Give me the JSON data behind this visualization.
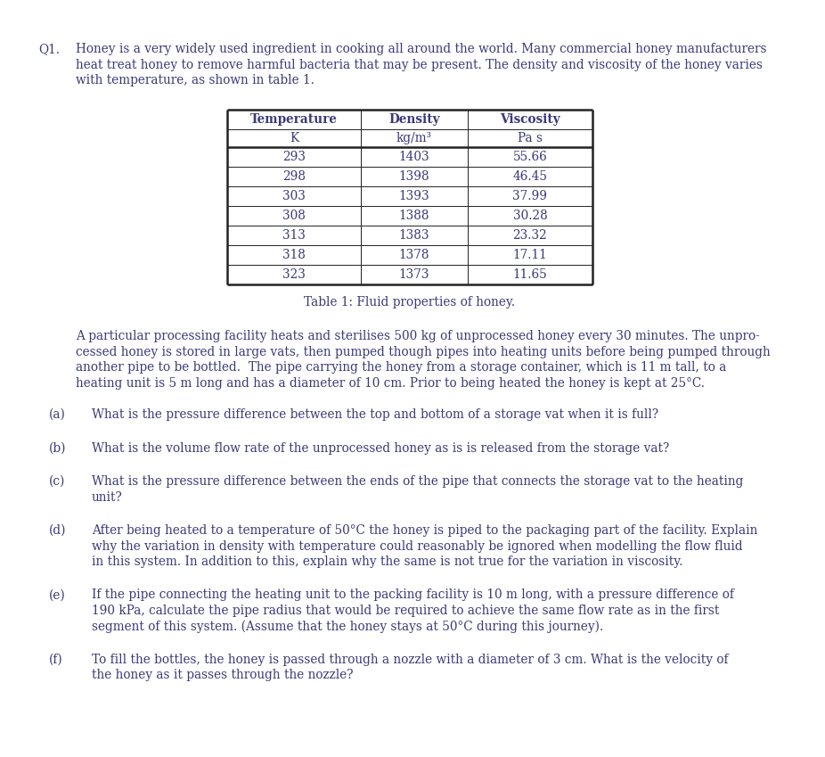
{
  "bg_color": "#ffffff",
  "text_color": "#3a3a7a",
  "border_color": "#222222",
  "font_size_body": 9.8,
  "font_size_table": 9.8,
  "q1_label": "Q1.",
  "intro_text_lines": [
    "Honey is a very widely used ingredient in cooking all around the world. Many commercial honey manufacturers",
    "heat treat honey to remove harmful bacteria that may be present. The density and viscosity of the honey varies",
    "with temperature, as shown in table 1."
  ],
  "table_caption": "Table 1: Fluid properties of honey.",
  "table_headers": [
    "Temperature",
    "Density",
    "Viscosity"
  ],
  "table_subheaders": [
    "K",
    "kg/m³",
    "Pa s"
  ],
  "table_data": [
    [
      "293",
      "1403",
      "55.66"
    ],
    [
      "298",
      "1398",
      "46.45"
    ],
    [
      "303",
      "1393",
      "37.99"
    ],
    [
      "308",
      "1388",
      "30.28"
    ],
    [
      "313",
      "1383",
      "23.32"
    ],
    [
      "318",
      "1378",
      "17.11"
    ],
    [
      "323",
      "1373",
      "11.65"
    ]
  ],
  "paragraph2_lines": [
    "A particular processing facility heats and sterilises 500 kg of unprocessed honey every 30 minutes. The unpro-",
    "cessed honey is stored in large vats, then pumped though pipes into heating units before being pumped through",
    "another pipe to be bottled.  The pipe carrying the honey from a storage container, which is 11 m tall, to a",
    "heating unit is 5 m long and has a diameter of 10 cm. Prior to being heated the honey is kept at 25°C."
  ],
  "questions": [
    {
      "label": "(a)",
      "text_lines": [
        "What is the pressure difference between the top and bottom of a storage vat when it is full?"
      ]
    },
    {
      "label": "(b)",
      "text_lines": [
        "What is the volume flow rate of the unprocessed honey as is is released from the storage vat?"
      ]
    },
    {
      "label": "(c)",
      "text_lines": [
        "What is the pressure difference between the ends of the pipe that connects the storage vat to the heating",
        "unit?"
      ]
    },
    {
      "label": "(d)",
      "text_lines": [
        "After being heated to a temperature of 50°C the honey is piped to the packaging part of the facility. Explain",
        "why the variation in density with temperature could reasonably be ignored when modelling the flow fluid",
        "in this system. In addition to this, explain why the same is not true for the variation in viscosity."
      ]
    },
    {
      "label": "(e)",
      "text_lines": [
        "If the pipe connecting the heating unit to the packing facility is 10 m long, with a pressure difference of",
        "190 kPa, calculate the pipe radius that would be required to achieve the same flow rate as in the first",
        "segment of this system. (Assume that the honey stays at 50°C during this journey)."
      ]
    },
    {
      "label": "(f)",
      "text_lines": [
        "To fill the bottles, the honey is passed through a nozzle with a diameter of 3 cm. What is the velocity of",
        "the honey as it passes through the nozzle?"
      ]
    }
  ]
}
